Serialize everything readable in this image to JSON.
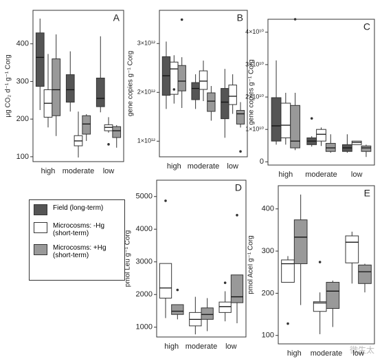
{
  "legend": [
    {
      "label": "Field (long-term)",
      "color": "#555555"
    },
    {
      "label": "Microcosms: -Hg (short-term)",
      "color": "#ffffff"
    },
    {
      "label": "Microcosms: +Hg (short-term)",
      "color": "#999999"
    }
  ],
  "watermark": "微生太",
  "chart_data": [
    {
      "type": "box",
      "panel_label": "A",
      "y_label": "μg CO₂ d⁻¹ g⁻¹ Corg",
      "categories": [
        "high",
        "moderate",
        "low"
      ],
      "ylim": [
        87,
        489
      ],
      "yticks": [
        100,
        200,
        300,
        400
      ],
      "series": [
        {
          "color": "#555555",
          "values": [
            {
              "min": 224,
              "q1": 287,
              "median": 364,
              "q3": 429,
              "max": 467,
              "outliers": []
            },
            {
              "min": 220,
              "q1": 245,
              "median": 278,
              "q3": 318,
              "max": 380,
              "outliers": []
            },
            {
              "min": 218,
              "q1": 233,
              "median": 255,
              "q3": 309,
              "max": 420,
              "outliers": []
            }
          ]
        },
        {
          "color": "#ffffff",
          "values": [
            {
              "min": 178,
              "q1": 205,
              "median": 242,
              "q3": 278,
              "max": 373,
              "outliers": []
            },
            {
              "min": 98,
              "q1": 129,
              "median": 142,
              "q3": 156,
              "max": 220,
              "outliers": []
            },
            {
              "min": 164,
              "q1": 169,
              "median": 178,
              "q3": 185,
              "max": 205,
              "outliers": [
                133
              ]
            }
          ]
        },
        {
          "color": "#999999",
          "values": [
            {
              "min": 155,
              "q1": 209,
              "median": 278,
              "q3": 360,
              "max": 425,
              "outliers": []
            },
            {
              "min": 142,
              "q1": 160,
              "median": 187,
              "q3": 209,
              "max": 213,
              "outliers": []
            },
            {
              "min": 124,
              "q1": 151,
              "median": 169,
              "q3": 180,
              "max": 184,
              "outliers": []
            }
          ]
        }
      ]
    },
    {
      "type": "box",
      "panel_label": "B",
      "y_label": "gene copies g⁻¹ Corg",
      "categories": [
        "high",
        "moderate",
        "low"
      ],
      "ylim": [
        680000000000.0,
        3680000000000.0
      ],
      "yticks": [
        {
          "value": 1000000000000.0,
          "label": "1×10¹²"
        },
        {
          "value": 2000000000000.0,
          "label": "2×10¹²"
        },
        {
          "value": 3000000000000.0,
          "label": "3×10¹²"
        }
      ],
      "series": [
        {
          "color": "#555555",
          "values": [
            {
              "min": 1660000000000.0,
              "q1": 1940000000000.0,
              "median": 2340000000000.0,
              "q3": 2730000000000.0,
              "max": 3040000000000.0,
              "outliers": []
            },
            {
              "min": 1660000000000.0,
              "q1": 1850000000000.0,
              "median": 2080000000000.0,
              "q3": 2200000000000.0,
              "max": 2370000000000.0,
              "outliers": []
            },
            {
              "min": 1070000000000.0,
              "q1": 1460000000000.0,
              "median": 1800000000000.0,
              "q3": 2080000000000.0,
              "max": 2480000000000.0,
              "outliers": []
            }
          ]
        },
        {
          "color": "#ffffff",
          "values": [
            {
              "min": 1770000000000.0,
              "q1": 1960000000000.0,
              "median": 2480000000000.0,
              "q3": 2620000000000.0,
              "max": 2760000000000.0,
              "outliers": [
                2060000000000.0
              ]
            },
            {
              "min": 1820000000000.0,
              "q1": 2060000000000.0,
              "median": 2230000000000.0,
              "q3": 2440000000000.0,
              "max": 2650000000000.0,
              "outliers": []
            },
            {
              "min": 1560000000000.0,
              "q1": 1750000000000.0,
              "median": 1920000000000.0,
              "q3": 2150000000000.0,
              "max": 2370000000000.0,
              "outliers": []
            }
          ]
        },
        {
          "color": "#999999",
          "values": [
            {
              "min": 1680000000000.0,
              "q1": 2030000000000.0,
              "median": 2230000000000.0,
              "q3": 2550000000000.0,
              "max": 2720000000000.0,
              "outliers": [
                3490000000000.0
              ]
            },
            {
              "min": 1420000000000.0,
              "q1": 1610000000000.0,
              "median": 1820000000000.0,
              "q3": 1990000000000.0,
              "max": 2130000000000.0,
              "outliers": []
            },
            {
              "min": 1280000000000.0,
              "q1": 1350000000000.0,
              "median": 1560000000000.0,
              "q3": 1630000000000.0,
              "max": 1800000000000.0,
              "outliers": [
                790000000000.0
              ]
            }
          ]
        }
      ]
    },
    {
      "type": "box",
      "panel_label": "C",
      "y_label": "gene copies g⁻¹ Corg",
      "categories": [
        "high",
        "moderate",
        "low"
      ],
      "ylim": [
        -1000000000.0,
        44000000000.0
      ],
      "yticks": [
        0,
        {
          "value": 10000000000.0,
          "label": "1×10¹⁰"
        },
        {
          "value": 20000000000.0,
          "label": "2×10¹⁰"
        },
        {
          "value": 30000000000.0,
          "label": "3×10¹⁰"
        },
        {
          "value": 40000000000.0,
          "label": "4×10¹⁰"
        }
      ],
      "series": [
        {
          "color": "#555555",
          "values": [
            {
              "min": 5300000000.0,
              "q1": 6400000000.0,
              "median": 11100000000.0,
              "q3": 19800000000.0,
              "max": 31300000000.0,
              "outliers": []
            },
            {
              "min": 4700000000.0,
              "q1": 5300000000.0,
              "median": 6400000000.0,
              "q3": 7400000000.0,
              "max": 7900000000.0,
              "outliers": [
                13400000000.0
              ]
            },
            {
              "min": 2800000000.0,
              "q1": 3200000000.0,
              "median": 4300000000.0,
              "q3": 5300000000.0,
              "max": 8500000000.0,
              "outliers": []
            }
          ]
        },
        {
          "color": "#ffffff",
          "values": [
            {
              "min": 5300000000.0,
              "q1": 7400000000.0,
              "median": 11300000000.0,
              "q3": 18100000000.0,
              "max": 21300000000.0,
              "outliers": []
            },
            {
              "min": 4900000000.0,
              "q1": 6400000000.0,
              "median": 8500000000.0,
              "q3": 10000000000.0,
              "max": 10600000000.0,
              "outliers": []
            },
            {
              "min": 5300000000.0,
              "q1": 5300000000.0,
              "median": 6000000000.0,
              "q3": 6400000000.0,
              "max": 6400000000.0,
              "outliers": []
            }
          ]
        },
        {
          "color": "#999999",
          "values": [
            {
              "min": 3600000000.0,
              "q1": 4300000000.0,
              "median": 6400000000.0,
              "q3": 17400000000.0,
              "max": 21300000000.0,
              "outliers": [
                44000000000.0
              ]
            },
            {
              "min": 2800000000.0,
              "q1": 3200000000.0,
              "median": 4300000000.0,
              "q3": 5700000000.0,
              "max": 8500000000.0,
              "outliers": []
            },
            {
              "min": 1500000000.0,
              "q1": 3200000000.0,
              "median": 4300000000.0,
              "q3": 4900000000.0,
              "max": 5300000000.0,
              "outliers": []
            }
          ]
        }
      ]
    },
    {
      "type": "box",
      "panel_label": "D",
      "y_label": "pmol Leu g⁻¹ Corg",
      "categories": [
        "high",
        "moderate",
        "low"
      ],
      "ylim": [
        700,
        5500
      ],
      "yticks": [
        1000,
        2000,
        3000,
        4000,
        5000
      ],
      "series": [
        {
          "color": "#ffffff",
          "values": [
            {
              "min": 1280,
              "q1": 1890,
              "median": 2200,
              "q3": 2950,
              "max": 2950,
              "outliers": [
                4870
              ]
            },
            {
              "min": 780,
              "q1": 1040,
              "median": 1240,
              "q3": 1450,
              "max": 1930,
              "outliers": []
            },
            {
              "min": 1180,
              "q1": 1450,
              "median": 1630,
              "q3": 1770,
              "max": 2100,
              "outliers": [
                2360
              ]
            }
          ]
        },
        {
          "color": "#999999",
          "values": [
            {
              "min": 1240,
              "q1": 1390,
              "median": 1490,
              "q3": 1690,
              "max": 1690,
              "outliers": [
                2140
              ]
            },
            {
              "min": 880,
              "q1": 1240,
              "median": 1390,
              "q3": 1590,
              "max": 1890,
              "outliers": []
            },
            {
              "min": 1120,
              "q1": 1750,
              "median": 1930,
              "q3": 2600,
              "max": 2600,
              "outliers": [
                4430
              ]
            }
          ]
        }
      ]
    },
    {
      "type": "box",
      "panel_label": "E",
      "y_label": "pmol AceI g⁻¹ Corg",
      "categories": [
        "high",
        "moderate",
        "low"
      ],
      "ylim": [
        80,
        455
      ],
      "yticks": [
        100,
        200,
        300,
        400
      ],
      "series": [
        {
          "color": "#ffffff",
          "values": [
            {
              "min": 226,
              "q1": 226,
              "median": 270,
              "q3": 279,
              "max": 288,
              "outliers": [
                128
              ]
            },
            {
              "min": 103,
              "q1": 157,
              "median": 177,
              "q3": 180,
              "max": 202,
              "outliers": [
                274
              ]
            },
            {
              "min": 223,
              "q1": 272,
              "median": 321,
              "q3": 336,
              "max": 346,
              "outliers": []
            }
          ]
        },
        {
          "color": "#999999",
          "values": [
            {
              "min": 172,
              "q1": 270,
              "median": 333,
              "q3": 374,
              "max": 434,
              "outliers": []
            },
            {
              "min": 120,
              "q1": 164,
              "median": 205,
              "q3": 226,
              "max": 230,
              "outliers": []
            },
            {
              "min": 202,
              "q1": 223,
              "median": 251,
              "q3": 267,
              "max": 270,
              "outliers": []
            }
          ]
        }
      ]
    }
  ]
}
